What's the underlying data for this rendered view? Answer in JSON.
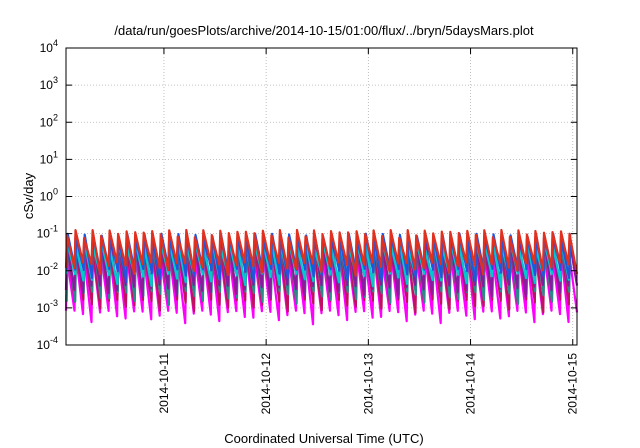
{
  "chart_data": {
    "type": "line",
    "title": "/data/run/goesPlots/archive/2014-10-15/01:00/flux/../bryn/5daysMars.plot",
    "xlabel": "Coordinated Universal Time (UTC)",
    "ylabel": "cSv/day",
    "y_scale": "log",
    "ylim": [
      0.0001,
      10000
    ],
    "xlim": [
      "2014-10-10 01:00",
      "2014-10-15 01:00"
    ],
    "grid": true,
    "legend": "none",
    "y_ticks": [
      {
        "base": "10",
        "exp": "-4"
      },
      {
        "base": "10",
        "exp": "-3"
      },
      {
        "base": "10",
        "exp": "-2"
      },
      {
        "base": "10",
        "exp": "-1"
      },
      {
        "base": "10",
        "exp": "0"
      },
      {
        "base": "10",
        "exp": "1"
      },
      {
        "base": "10",
        "exp": "2"
      },
      {
        "base": "10",
        "exp": "3"
      },
      {
        "base": "10",
        "exp": "4"
      }
    ],
    "x_ticks": [
      {
        "label": "2014-10-11",
        "value": "2014-10-11 00:00"
      },
      {
        "label": "2014-10-12",
        "value": "2014-10-12 00:00"
      },
      {
        "label": "2014-10-13",
        "value": "2014-10-13 00:00"
      },
      {
        "label": "2014-10-14",
        "value": "2014-10-14 00:00"
      },
      {
        "label": "2014-10-15",
        "value": "2014-10-15 00:00"
      }
    ],
    "cycle_period_hours": 2,
    "series": [
      {
        "color": "#ff00ff",
        "peak": 0.028,
        "trough": 0.0006
      },
      {
        "color": "#c01060",
        "peak": 0.04,
        "trough": 0.0012
      },
      {
        "color": "#2a8a8a",
        "peak": 0.055,
        "trough": 0.002
      },
      {
        "color": "#8a1aa0",
        "peak": 0.07,
        "trough": 0.003
      },
      {
        "color": "#00c8d0",
        "peak": 0.05,
        "trough": 0.006
      },
      {
        "color": "#2255dd",
        "peak": 0.08,
        "trough": 0.008
      },
      {
        "color": "#e03020",
        "peak": 0.1,
        "trough": 0.012
      }
    ]
  }
}
